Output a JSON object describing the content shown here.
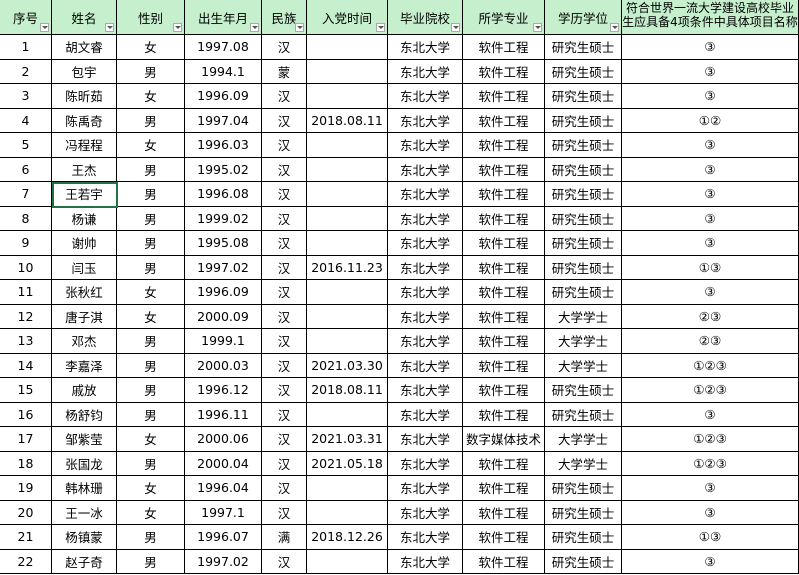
{
  "table": {
    "header": [
      "序号",
      "姓名",
      "性别",
      "出生年月",
      "民族",
      "入党时间",
      "毕业院校",
      "所学专业",
      "学历学位",
      "符合世界一流大学建设高校毕业生应具备4项条件中具体项目名称"
    ],
    "rows": [
      [
        1,
        "胡文睿",
        "女",
        "1997.08",
        "汉",
        null,
        "东北大学",
        "软件工程",
        "研究生硕士",
        "③"
      ],
      [
        2,
        "包宇",
        "男",
        "1994.1",
        "蒙",
        null,
        "东北大学",
        "软件工程",
        "研究生硕士",
        "③"
      ],
      [
        3,
        "陈昕茹",
        "女",
        "1996.09",
        "汉",
        null,
        "东北大学",
        "软件工程",
        "研究生硕士",
        "③"
      ],
      [
        4,
        "陈禹奇",
        "男",
        "1997.04",
        "汉",
        "2018.08.11",
        "东北大学",
        "软件工程",
        "研究生硕士",
        "①②"
      ],
      [
        5,
        "冯程程",
        "女",
        "1996.03",
        "汉",
        null,
        "东北大学",
        "软件工程",
        "研究生硕士",
        "③"
      ],
      [
        6,
        "王杰",
        "男",
        "1995.02",
        "汉",
        null,
        "东北大学",
        "软件工程",
        "研究生硕士",
        "③"
      ],
      [
        7,
        "王若宇",
        "男",
        "1996.08",
        "汉",
        null,
        "东北大学",
        "软件工程",
        "研究生硕士",
        "③"
      ],
      [
        8,
        "杨谦",
        "男",
        "1999.02",
        "汉",
        null,
        "东北大学",
        "软件工程",
        "研究生硕士",
        "③"
      ],
      [
        9,
        "谢帅",
        "男",
        "1995.08",
        "汉",
        null,
        "东北大学",
        "软件工程",
        "研究生硕士",
        "③"
      ],
      [
        10,
        "闫玉",
        "男",
        "1997.02",
        "汉",
        "2016.11.23",
        "东北大学",
        "软件工程",
        "研究生硕士",
        "①③"
      ],
      [
        11,
        "张秋红",
        "女",
        "1996.09",
        "汉",
        null,
        "东北大学",
        "软件工程",
        "研究生硕士",
        "③"
      ],
      [
        12,
        "唐子淇",
        "女",
        "2000.09",
        "汉",
        null,
        "东北大学",
        "软件工程",
        "大学学士",
        "②③"
      ],
      [
        13,
        "邓杰",
        "男",
        "1999.1",
        "汉",
        null,
        "东北大学",
        "软件工程",
        "大学学士",
        "②③"
      ],
      [
        14,
        "李嘉泽",
        "男",
        "2000.03",
        "汉",
        "2021.03.30",
        "东北大学",
        "软件工程",
        "大学学士",
        "①②③"
      ],
      [
        15,
        "戚放",
        "男",
        "1996.12",
        "汉",
        "2018.08.11",
        "东北大学",
        "软件工程",
        "研究生硕士",
        "①②③"
      ],
      [
        16,
        "杨舒钧",
        "男",
        "1996.11",
        "汉",
        null,
        "东北大学",
        "软件工程",
        "研究生硕士",
        "③"
      ],
      [
        17,
        "邹紫莹",
        "女",
        "2000.06",
        "汉",
        "2021.03.31",
        "东北大学",
        "数字媒体技术",
        "大学学士",
        "①②③"
      ],
      [
        18,
        "张国龙",
        "男",
        "2000.04",
        "汉",
        "2021.05.18",
        "东北大学",
        "软件工程",
        "大学学士",
        "①②③"
      ],
      [
        19,
        "韩林珊",
        "女",
        "1996.04",
        "汉",
        null,
        "东北大学",
        "软件工程",
        "研究生硕士",
        "③"
      ],
      [
        20,
        "王一冰",
        "女",
        "1997.1",
        "汉",
        null,
        "东北大学",
        "软件工程",
        "研究生硕士",
        "③"
      ],
      [
        21,
        "杨镇蒙",
        "男",
        "1996.07",
        "满",
        "2018.12.26",
        "东北大学",
        "软件工程",
        "研究生硕士",
        "①③"
      ],
      [
        22,
        "赵子奇",
        "男",
        "1997.02",
        "汉",
        null,
        "东北大学",
        "软件工程",
        "研究生硕士",
        "③"
      ]
    ]
  }
}
